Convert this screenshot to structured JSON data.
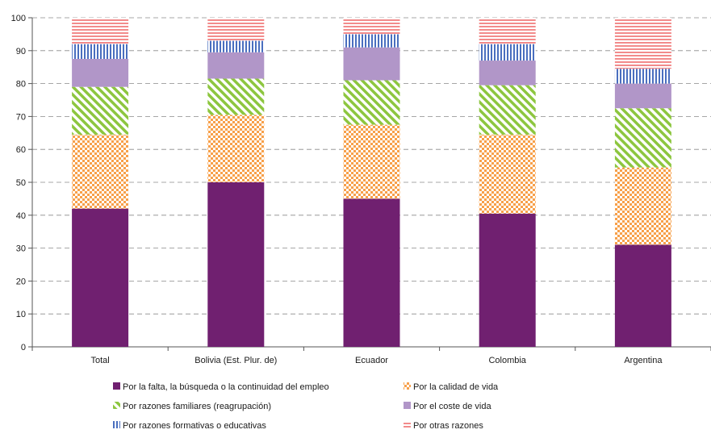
{
  "chart_data": {
    "type": "bar",
    "stacked": true,
    "categories": [
      "Total",
      "Bolivia (Est. Plur. de)",
      "Ecuador",
      "Colombia",
      "Argentina"
    ],
    "series": [
      {
        "name": "Por la falta, la búsqueda o la continuidad del empleo",
        "color": "#702070",
        "pattern": "solid",
        "values": [
          42,
          50,
          45,
          40.5,
          31
        ]
      },
      {
        "name": "Por la calidad de vida",
        "color": "#f7a04a",
        "pattern": "checker",
        "values": [
          22.5,
          20.5,
          22.5,
          24,
          23.5
        ]
      },
      {
        "name": "Por razones familiares (reagrupación)",
        "color": "#8dc63f",
        "pattern": "diagonal",
        "values": [
          14.5,
          11,
          13.5,
          15,
          18
        ]
      },
      {
        "name": "Por el coste de vida",
        "color": "#b196c8",
        "pattern": "solid",
        "values": [
          8.5,
          8,
          10,
          7.5,
          7.5
        ]
      },
      {
        "name": "Por razones formativas o educativas",
        "color": "#4a6fbf",
        "pattern": "vertical",
        "values": [
          4.5,
          3.5,
          4,
          5,
          4.5
        ]
      },
      {
        "name": "Por otras razones",
        "color": "#f28b8b",
        "pattern": "horizontal",
        "values": [
          8,
          7,
          5,
          8,
          15.5
        ]
      }
    ],
    "ylim": [
      0,
      100
    ],
    "yticks": [
      0,
      10,
      20,
      30,
      40,
      50,
      60,
      70,
      80,
      90,
      100
    ],
    "grid": "dashed-horizontal",
    "legend_placement": "bottom",
    "title": "",
    "xlabel": "",
    "ylabel": ""
  }
}
